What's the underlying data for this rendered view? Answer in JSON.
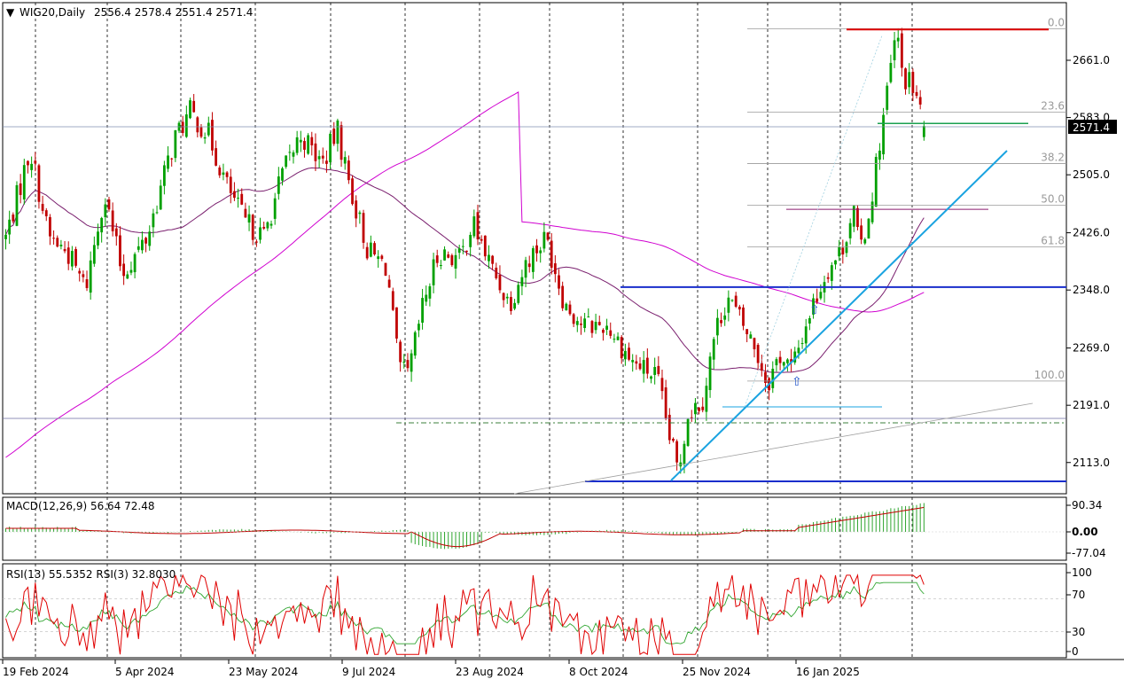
{
  "chart_data": [
    {
      "type": "candlestick",
      "title": "WIG20,Daily",
      "ohlc_label": "2556.4 2578.4 2551.4 2571.4",
      "last_price_label": "2571.4",
      "last_price": 2571.4,
      "y_ticks": [
        {
          "value": 2661,
          "label": "2661.0"
        },
        {
          "value": 2583,
          "label": "2583.0"
        },
        {
          "value": 2505,
          "label": "2505.0"
        },
        {
          "value": 2426,
          "label": "2426.0"
        },
        {
          "value": 2348,
          "label": "2348.0"
        },
        {
          "value": 2269,
          "label": "2269.0"
        },
        {
          "value": 2191,
          "label": "2191.0"
        },
        {
          "value": 2113,
          "label": "2113.0"
        }
      ],
      "x_ticks": [
        "19 Feb 2024",
        "5 Apr 2024",
        "23 May 2024",
        "9 Jul 2024",
        "23 Aug 2024",
        "8 Oct 2024",
        "25 Nov 2024",
        "16 Jan 2025"
      ],
      "fibonacci_levels": [
        {
          "label": "0.0",
          "value": 2704.0
        },
        {
          "label": "23.6",
          "value": 2590.5
        },
        {
          "label": "38.2",
          "value": 2520.2
        },
        {
          "label": "50.0",
          "value": 2463.5
        },
        {
          "label": "61.8",
          "value": 2406.8
        },
        {
          "label": "100.0",
          "value": 2224.0
        }
      ],
      "key_closes": [
        {
          "date": "19 Feb 2024",
          "close": 2420
        },
        {
          "date": "5 Apr 2024",
          "close": 2480
        },
        {
          "date": "23 May 2024",
          "close": 2500
        },
        {
          "date": "9 Jul 2024",
          "close": 2490
        },
        {
          "date": "23 Aug 2024",
          "close": 2390
        },
        {
          "date": "8 Oct 2024",
          "close": 2290
        },
        {
          "date": "25 Nov 2024",
          "close": 2250
        },
        {
          "date": "16 Jan 2025",
          "close": 2440
        },
        {
          "date": "peak",
          "close": 2700
        }
      ],
      "support_resistance": [
        2703,
        2352,
        2213,
        2575,
        2458
      ]
    },
    {
      "type": "histogram",
      "title": "MACD(12,26,9) 56.64 72.48",
      "y_ticks": [
        "90.34",
        "0.00",
        "-77.04"
      ],
      "macd_last": 56.64,
      "signal_last": 72.48
    },
    {
      "type": "line",
      "title": "RSI(13) 55.5352 RSI(3) 32.8030",
      "y_ticks": [
        "100",
        "70",
        "30",
        "0"
      ],
      "series": [
        {
          "name": "RSI(13)",
          "last": 55.5352,
          "color": "#2fa52f"
        },
        {
          "name": "RSI(3)",
          "last": 32.803,
          "color": "#e00000"
        }
      ]
    }
  ],
  "colors": {
    "bull_candle": "#00a000",
    "bear_candle": "#c00000",
    "sma_short": "#7a1f6e",
    "sma_long": "#d000d0",
    "trend_line": "#1aa3e0",
    "support_blue": "#1a2ecc",
    "resistance_red": "#e00000",
    "green_line": "#1aa050",
    "fib_grey": "#9a9a9a"
  }
}
